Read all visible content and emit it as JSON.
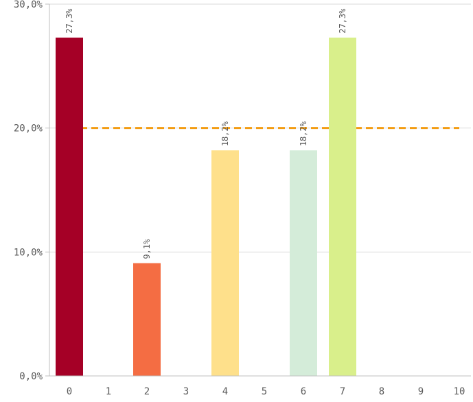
{
  "chart_data": {
    "type": "bar",
    "categories": [
      "0",
      "1",
      "2",
      "3",
      "4",
      "5",
      "6",
      "7",
      "8",
      "9",
      "10"
    ],
    "values": [
      27.3,
      0,
      9.1,
      0,
      18.2,
      0,
      18.2,
      27.3,
      0,
      0,
      0
    ],
    "data_labels": [
      "27,3%",
      "",
      "9,1%",
      "",
      "18,2%",
      "",
      "18,2%",
      "27,3%",
      "",
      "",
      ""
    ],
    "bar_colors": [
      "#a50026",
      null,
      "#f46d43",
      null,
      "#fee08b",
      null,
      "#d4ecd9",
      "#d9ef8b",
      null,
      null,
      null
    ],
    "y_ticks": [
      0,
      10,
      20,
      30
    ],
    "y_tick_labels": [
      "0,0%",
      "10,0%",
      "20,0%",
      "30,0%"
    ],
    "ylim": [
      0,
      30
    ],
    "grid": true,
    "reference_line": {
      "value": 20,
      "color": "#f39c12",
      "style": "dashed"
    },
    "title": "",
    "xlabel": "",
    "ylabel": ""
  }
}
